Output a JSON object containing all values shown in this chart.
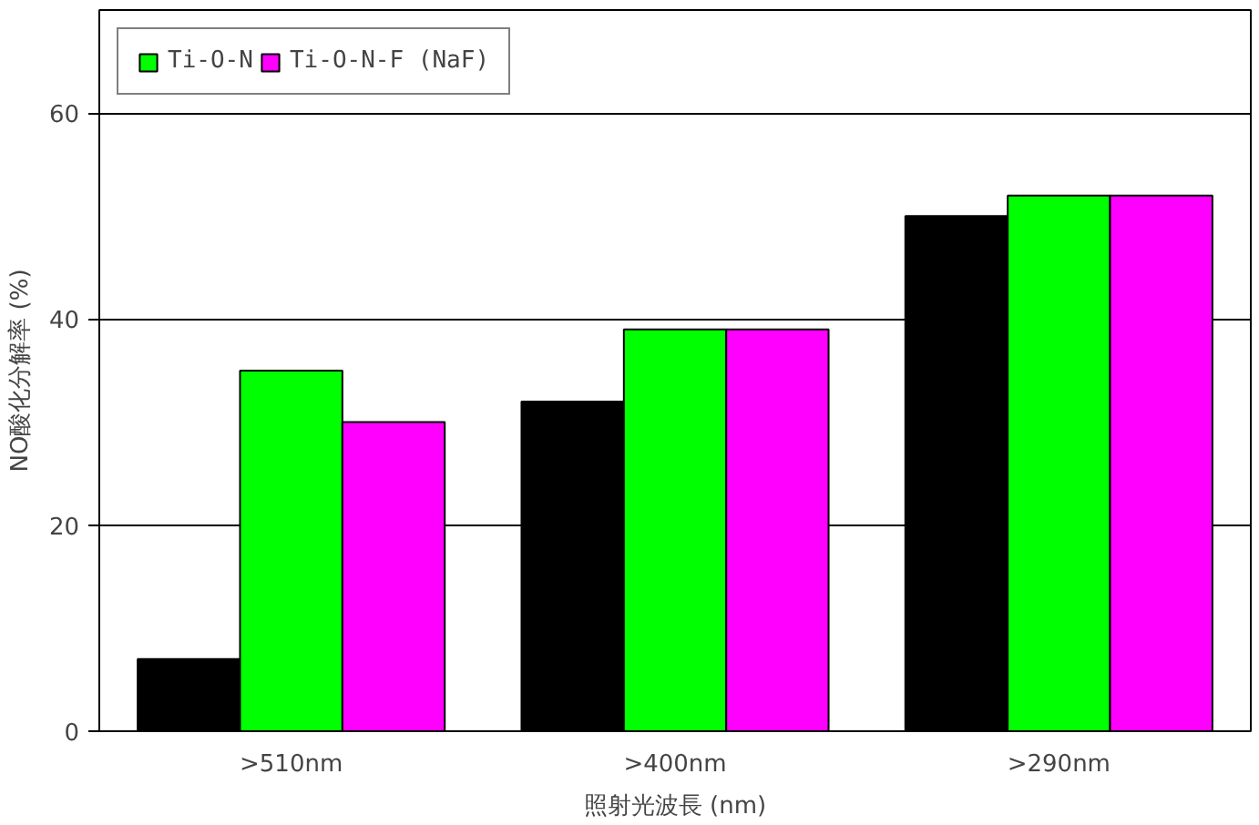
{
  "chart_data": {
    "type": "bar",
    "xlabel": "照射光波長 (nm)",
    "ylabel": "NO酸化分解率 (%)",
    "categories": [
      ">510nm",
      ">400nm",
      ">290nm"
    ],
    "series": [
      {
        "color": "#000000",
        "values": [
          7,
          32,
          50
        ]
      },
      {
        "name": "Ti-O-N",
        "color": "#00ff00",
        "values": [
          35,
          39,
          52
        ]
      },
      {
        "name": "Ti-O-N-F (NaF)",
        "color": "#ff00ff",
        "values": [
          30,
          39,
          52
        ]
      }
    ],
    "ylim": [
      0,
      70
    ],
    "yticks": [
      0,
      20,
      40,
      60
    ],
    "grid": "y",
    "legend": "top left"
  }
}
